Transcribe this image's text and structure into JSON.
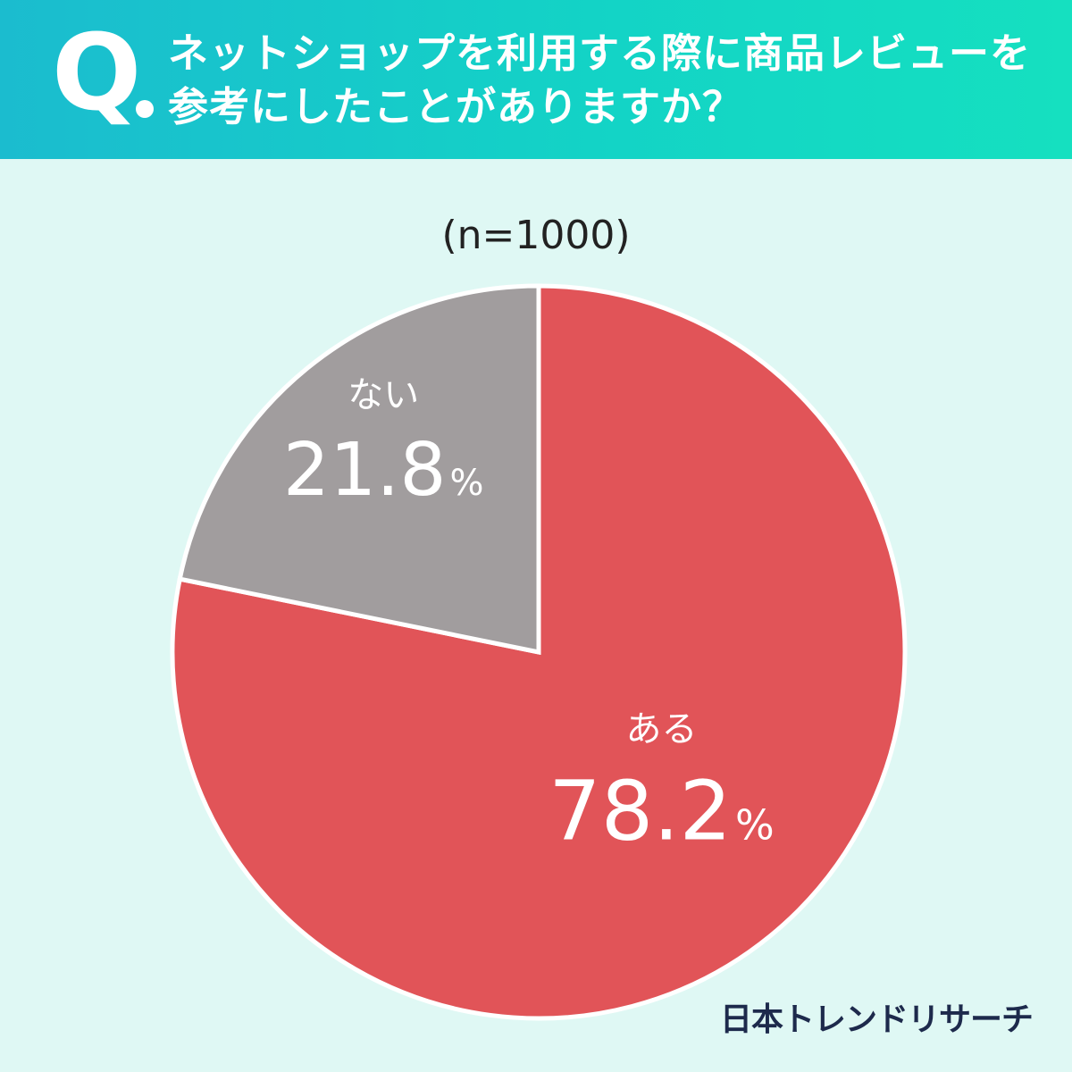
{
  "header": {
    "q_mark": "Q",
    "question_line1": "ネットショップを利用する際に商品レビューを",
    "question_line2": "参考にしたことがありますか？"
  },
  "sample_size": "(n=1000)",
  "brand": "日本トレンドリサーチ",
  "colors": {
    "header_gradient_start": "#1bbccf",
    "header_gradient_end": "#15e0c0",
    "background": "#dff8f4",
    "aru": "#e15458",
    "nai": "#a19d9e"
  },
  "chart_data": {
    "type": "pie",
    "categories": [
      "ある",
      "ない"
    ],
    "values": [
      78.2,
      21.8
    ],
    "value_labels": [
      "78.2",
      "21.8"
    ],
    "unit": "%",
    "colors": [
      "#e15458",
      "#a19d9e"
    ],
    "start_angle": "12 o'clock",
    "direction": "clockwise"
  }
}
